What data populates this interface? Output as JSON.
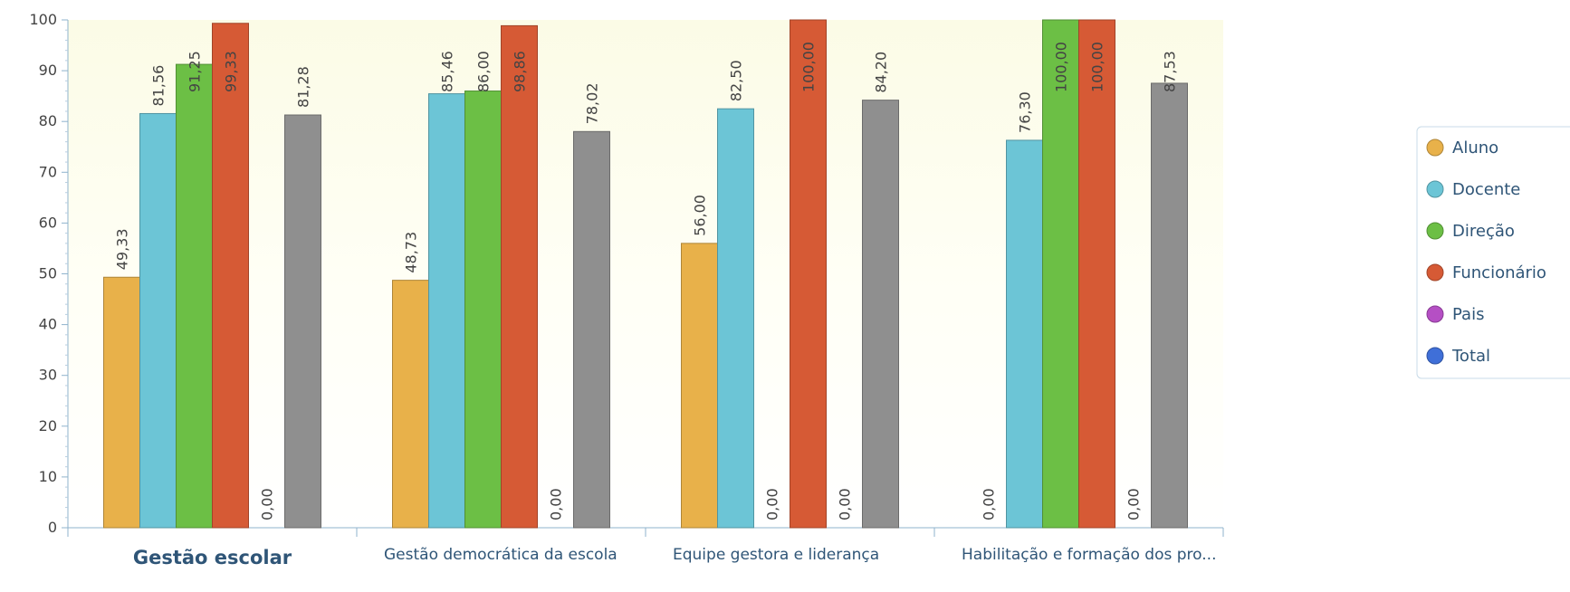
{
  "chart_data": {
    "type": "bar",
    "categories": [
      "Gestão escolar",
      "Gestão democrática da escola",
      "Equipe gestora e liderança",
      "Habilitação e formação dos pro..."
    ],
    "series": [
      {
        "name": "Aluno",
        "color": "#e8b14a",
        "values": [
          49.33,
          48.73,
          56.0,
          0.0
        ],
        "value_labels": [
          "49,33",
          "48,73",
          "56,00",
          "0,00"
        ]
      },
      {
        "name": "Docente",
        "color": "#6cc5d6",
        "values": [
          81.56,
          85.46,
          82.5,
          76.3
        ],
        "value_labels": [
          "81,56",
          "85,46",
          "82,50",
          "76,30"
        ]
      },
      {
        "name": "Direção",
        "color": "#6cbf45",
        "values": [
          91.25,
          86.0,
          0.0,
          100.0
        ],
        "value_labels": [
          "91,25",
          "86,00",
          "0,00",
          "100,00"
        ]
      },
      {
        "name": "Funcionário",
        "color": "#d65a35",
        "values": [
          99.33,
          98.86,
          100.0,
          100.0
        ],
        "value_labels": [
          "99,33",
          "98,86",
          "100,00",
          "100,00"
        ]
      },
      {
        "name": "Pais",
        "color": "#b54fc4",
        "values": [
          0.0,
          0.0,
          0.0,
          0.0
        ],
        "value_labels": [
          "0,00",
          "0,00",
          "0,00",
          "0,00"
        ]
      },
      {
        "name": "Total",
        "color": "#3f6fd8",
        "bar_color": "#8f8f8f",
        "values": [
          81.28,
          78.02,
          84.2,
          87.53
        ],
        "value_labels": [
          "81,28",
          "78,02",
          "84,20",
          "87,53"
        ]
      }
    ],
    "ylim": [
      0,
      100
    ],
    "yticks": [
      0,
      10,
      20,
      30,
      40,
      50,
      60,
      70,
      80,
      90,
      100
    ],
    "legend": "right"
  }
}
